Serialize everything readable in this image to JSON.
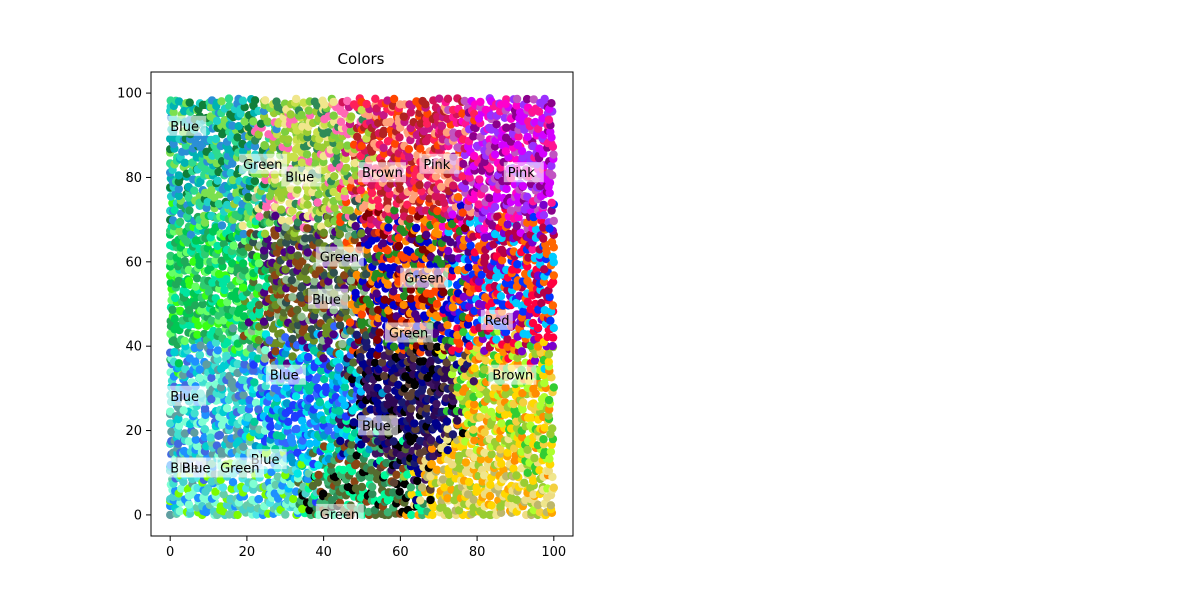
{
  "chart_data": {
    "type": "scatter",
    "title": "Colors",
    "xlabel": "",
    "ylabel": "",
    "xlim": [
      -5,
      105
    ],
    "ylim": [
      -5,
      105
    ],
    "x_ticks": [
      0,
      20,
      40,
      60,
      80,
      100
    ],
    "y_ticks": [
      0,
      20,
      40,
      60,
      80,
      100
    ],
    "grid": false,
    "point_domain": {
      "x": [
        0,
        100
      ],
      "y": [
        0,
        99
      ]
    },
    "color_regions": [
      {
        "center": [
          12,
          85
        ],
        "colors": [
          "#1fd1c7",
          "#2edb8e",
          "#00b3b3",
          "#2b8fd6",
          "#0f7f3a",
          "#7be04f"
        ]
      },
      {
        "center": [
          35,
          85
        ],
        "colors": [
          "#c8e04a",
          "#7dcf3f",
          "#f0e68c",
          "#2e8b57",
          "#9acd32",
          "#ff69b4"
        ]
      },
      {
        "center": [
          62,
          85
        ],
        "colors": [
          "#ff1f5a",
          "#d4145a",
          "#c71585",
          "#ff4500",
          "#b22222",
          "#ffa07a"
        ]
      },
      {
        "center": [
          88,
          85
        ],
        "colors": [
          "#d400ff",
          "#ff00cc",
          "#9b30ff",
          "#ff1493",
          "#c154c1",
          "#8b008b"
        ]
      },
      {
        "center": [
          10,
          55
        ],
        "colors": [
          "#00e5a0",
          "#39ff14",
          "#1faa59",
          "#00c853",
          "#2ecc71",
          "#66ff66"
        ]
      },
      {
        "center": [
          35,
          55
        ],
        "colors": [
          "#8b4513",
          "#556b2f",
          "#6b8e23",
          "#4b0082",
          "#2f4f4f",
          "#8fbc8f"
        ]
      },
      {
        "center": [
          62,
          55
        ],
        "colors": [
          "#ff4500",
          "#800000",
          "#4b0082",
          "#ff8c00",
          "#0000cd",
          "#228b22"
        ]
      },
      {
        "center": [
          88,
          55
        ],
        "colors": [
          "#ff0040",
          "#0033ff",
          "#00ccff",
          "#b40049",
          "#7a00cc",
          "#ff6600"
        ]
      },
      {
        "center": [
          12,
          25
        ],
        "colors": [
          "#40e0d0",
          "#00ced1",
          "#1e90ff",
          "#4169e1",
          "#7fffd4",
          "#5f9ea0"
        ]
      },
      {
        "center": [
          35,
          25
        ],
        "colors": [
          "#00bfff",
          "#1e3cff",
          "#0099cc",
          "#00e6e6",
          "#3366ff",
          "#00cc99"
        ]
      },
      {
        "center": [
          62,
          25
        ],
        "colors": [
          "#00008b",
          "#191970",
          "#2e0854",
          "#000000",
          "#3c1361",
          "#5c4033"
        ]
      },
      {
        "center": [
          88,
          25
        ],
        "colors": [
          "#adff2f",
          "#ffd700",
          "#9acd32",
          "#ff8c00",
          "#32cd32",
          "#f4d03f"
        ]
      },
      {
        "center": [
          20,
          5
        ],
        "colors": [
          "#7fffd4",
          "#66cdaa",
          "#48d1cc",
          "#4de6e6",
          "#7cfc00",
          "#1e90ff"
        ]
      },
      {
        "center": [
          50,
          5
        ],
        "colors": [
          "#2e8b57",
          "#3cb371",
          "#8b4513",
          "#000000",
          "#00fa9a",
          "#556b2f"
        ]
      },
      {
        "center": [
          80,
          5
        ],
        "colors": [
          "#ffd700",
          "#f0e68c",
          "#bdb76b",
          "#ffa500",
          "#9acd32",
          "#eedd82"
        ]
      }
    ],
    "annotations": [
      {
        "text": "Blue",
        "x": 0,
        "y": 92
      },
      {
        "text": "Green",
        "x": 19,
        "y": 83
      },
      {
        "text": "Blue",
        "x": 30,
        "y": 80
      },
      {
        "text": "Brown",
        "x": 50,
        "y": 81
      },
      {
        "text": "Pink",
        "x": 66,
        "y": 83
      },
      {
        "text": "Pink",
        "x": 88,
        "y": 81
      },
      {
        "text": "Green",
        "x": 39,
        "y": 61
      },
      {
        "text": "Green",
        "x": 61,
        "y": 56
      },
      {
        "text": "Blue",
        "x": 37,
        "y": 51
      },
      {
        "text": "Red",
        "x": 82,
        "y": 46
      },
      {
        "text": "Green",
        "x": 57,
        "y": 43
      },
      {
        "text": "Blue",
        "x": 26,
        "y": 33
      },
      {
        "text": "Brown",
        "x": 84,
        "y": 33
      },
      {
        "text": "Blue",
        "x": 0,
        "y": 28
      },
      {
        "text": "Blue",
        "x": 50,
        "y": 21
      },
      {
        "text": "Blue",
        "x": 21,
        "y": 13
      },
      {
        "text": "Blue",
        "x": 0,
        "y": 11
      },
      {
        "text": "Blue",
        "x": 3,
        "y": 11
      },
      {
        "text": "Green",
        "x": 13,
        "y": 11
      },
      {
        "text": "Green",
        "x": 39,
        "y": 0
      }
    ]
  }
}
